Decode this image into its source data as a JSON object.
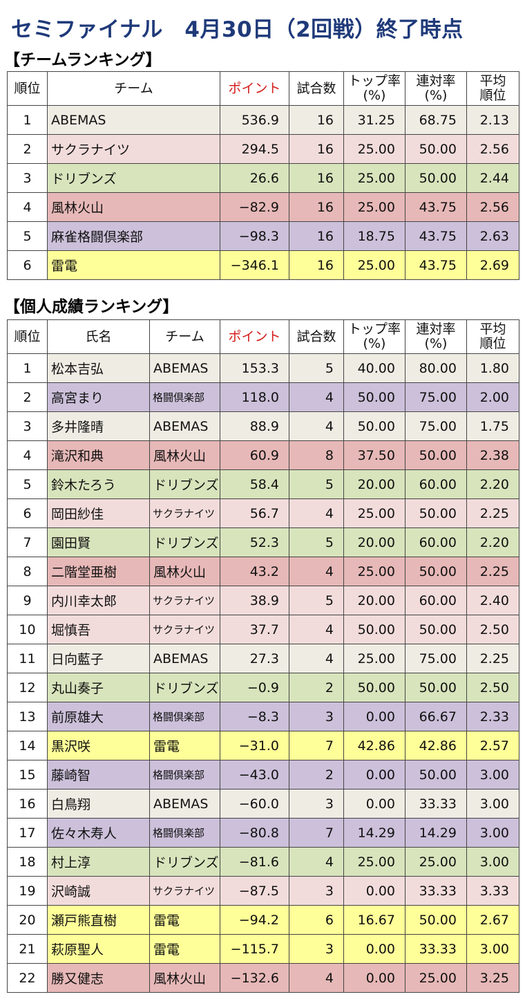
{
  "title": "セミファイナル　4月30日（2回戦）終了時点",
  "team_section": {
    "heading": "【チームランキング】",
    "headers": {
      "rank": "順位",
      "team": "チーム",
      "points": "ポイント",
      "games": "試合数",
      "top_rate": "トップ率\n(%)",
      "rentai": "連対率\n(%)",
      "avg": "平均\n順位"
    },
    "rows": [
      {
        "rank": "1",
        "team": "ABEMAS",
        "points": "536.9",
        "games": "16",
        "top_rate": "31.25",
        "rentai": "68.75",
        "avg": "2.13",
        "color": "#efece4"
      },
      {
        "rank": "2",
        "team": "サクラナイツ",
        "points": "294.5",
        "games": "16",
        "top_rate": "25.00",
        "rentai": "50.00",
        "avg": "2.56",
        "color": "#f2dcdb"
      },
      {
        "rank": "3",
        "team": "ドリブンズ",
        "points": "26.6",
        "games": "16",
        "top_rate": "25.00",
        "rentai": "50.00",
        "avg": "2.44",
        "color": "#d8e4bc"
      },
      {
        "rank": "4",
        "team": "風林火山",
        "points": "−82.9",
        "games": "16",
        "top_rate": "25.00",
        "rentai": "43.75",
        "avg": "2.56",
        "color": "#e6b8b7"
      },
      {
        "rank": "5",
        "team": "麻雀格闘倶楽部",
        "points": "−98.3",
        "games": "16",
        "top_rate": "18.75",
        "rentai": "43.75",
        "avg": "2.63",
        "color": "#ccc0da"
      },
      {
        "rank": "6",
        "team": "雷電",
        "points": "−346.1",
        "games": "16",
        "top_rate": "25.00",
        "rentai": "43.75",
        "avg": "2.69",
        "color": "#ffff99"
      }
    ]
  },
  "individual_section": {
    "heading": "【個人成績ランキング】",
    "headers": {
      "rank": "順位",
      "name": "氏名",
      "team": "チーム",
      "points": "ポイント",
      "games": "試合数",
      "top_rate": "トップ率\n(%)",
      "rentai": "連対率\n(%)",
      "avg": "平均\n順位"
    },
    "rows": [
      {
        "rank": "1",
        "name": "松本吉弘",
        "team": "ABEMAS",
        "points": "153.3",
        "games": "5",
        "top_rate": "40.00",
        "rentai": "80.00",
        "avg": "1.80",
        "color": "#efece4"
      },
      {
        "rank": "2",
        "name": "高宮まり",
        "team": "格闘倶楽部",
        "points": "118.0",
        "games": "4",
        "top_rate": "50.00",
        "rentai": "75.00",
        "avg": "2.00",
        "color": "#ccc0da"
      },
      {
        "rank": "3",
        "name": "多井隆晴",
        "team": "ABEMAS",
        "points": "88.9",
        "games": "4",
        "top_rate": "50.00",
        "rentai": "75.00",
        "avg": "1.75",
        "color": "#efece4"
      },
      {
        "rank": "4",
        "name": "滝沢和典",
        "team": "風林火山",
        "points": "60.9",
        "games": "8",
        "top_rate": "37.50",
        "rentai": "50.00",
        "avg": "2.38",
        "color": "#e6b8b7"
      },
      {
        "rank": "5",
        "name": "鈴木たろう",
        "team": "ドリブンズ",
        "points": "58.4",
        "games": "5",
        "top_rate": "20.00",
        "rentai": "60.00",
        "avg": "2.20",
        "color": "#d8e4bc"
      },
      {
        "rank": "6",
        "name": "岡田紗佳",
        "team": "サクラナイツ",
        "points": "56.7",
        "games": "4",
        "top_rate": "25.00",
        "rentai": "50.00",
        "avg": "2.25",
        "color": "#f2dcdb"
      },
      {
        "rank": "7",
        "name": "園田賢",
        "team": "ドリブンズ",
        "points": "52.3",
        "games": "5",
        "top_rate": "20.00",
        "rentai": "60.00",
        "avg": "2.20",
        "color": "#d8e4bc"
      },
      {
        "rank": "8",
        "name": "二階堂亜樹",
        "team": "風林火山",
        "points": "43.2",
        "games": "4",
        "top_rate": "25.00",
        "rentai": "50.00",
        "avg": "2.25",
        "color": "#e6b8b7"
      },
      {
        "rank": "9",
        "name": "内川幸太郎",
        "team": "サクラナイツ",
        "points": "38.9",
        "games": "5",
        "top_rate": "20.00",
        "rentai": "60.00",
        "avg": "2.40",
        "color": "#f2dcdb"
      },
      {
        "rank": "10",
        "name": "堀慎吾",
        "team": "サクラナイツ",
        "points": "37.7",
        "games": "4",
        "top_rate": "50.00",
        "rentai": "50.00",
        "avg": "2.50",
        "color": "#f2dcdb"
      },
      {
        "rank": "11",
        "name": "日向藍子",
        "team": "ABEMAS",
        "points": "27.3",
        "games": "4",
        "top_rate": "25.00",
        "rentai": "75.00",
        "avg": "2.25",
        "color": "#efece4"
      },
      {
        "rank": "12",
        "name": "丸山奏子",
        "team": "ドリブンズ",
        "points": "−0.9",
        "games": "2",
        "top_rate": "50.00",
        "rentai": "50.00",
        "avg": "2.50",
        "color": "#d8e4bc"
      },
      {
        "rank": "13",
        "name": "前原雄大",
        "team": "格闘倶楽部",
        "points": "−8.3",
        "games": "3",
        "top_rate": "0.00",
        "rentai": "66.67",
        "avg": "2.33",
        "color": "#ccc0da"
      },
      {
        "rank": "14",
        "name": "黒沢咲",
        "team": "雷電",
        "points": "−31.0",
        "games": "7",
        "top_rate": "42.86",
        "rentai": "42.86",
        "avg": "2.57",
        "color": "#ffff99"
      },
      {
        "rank": "15",
        "name": "藤崎智",
        "team": "格闘倶楽部",
        "points": "−43.0",
        "games": "2",
        "top_rate": "0.00",
        "rentai": "50.00",
        "avg": "3.00",
        "color": "#ccc0da"
      },
      {
        "rank": "16",
        "name": "白鳥翔",
        "team": "ABEMAS",
        "points": "−60.0",
        "games": "3",
        "top_rate": "0.00",
        "rentai": "33.33",
        "avg": "3.00",
        "color": "#efece4"
      },
      {
        "rank": "17",
        "name": "佐々木寿人",
        "team": "格闘倶楽部",
        "points": "−80.8",
        "games": "7",
        "top_rate": "14.29",
        "rentai": "14.29",
        "avg": "3.00",
        "color": "#ccc0da"
      },
      {
        "rank": "18",
        "name": "村上淳",
        "team": "ドリブンズ",
        "points": "−81.6",
        "games": "4",
        "top_rate": "25.00",
        "rentai": "25.00",
        "avg": "3.00",
        "color": "#d8e4bc"
      },
      {
        "rank": "19",
        "name": "沢崎誠",
        "team": "サクラナイツ",
        "points": "−87.5",
        "games": "3",
        "top_rate": "0.00",
        "rentai": "33.33",
        "avg": "3.33",
        "color": "#f2dcdb"
      },
      {
        "rank": "20",
        "name": "瀬戸熊直樹",
        "team": "雷電",
        "points": "−94.2",
        "games": "6",
        "top_rate": "16.67",
        "rentai": "50.00",
        "avg": "2.67",
        "color": "#ffff99"
      },
      {
        "rank": "21",
        "name": "萩原聖人",
        "team": "雷電",
        "points": "−115.7",
        "games": "3",
        "top_rate": "0.00",
        "rentai": "33.33",
        "avg": "3.00",
        "color": "#ffff99"
      },
      {
        "rank": "22",
        "name": "勝又健志",
        "team": "風林火山",
        "points": "−132.6",
        "games": "4",
        "top_rate": "0.00",
        "rentai": "25.00",
        "avg": "3.25",
        "color": "#e6b8b7"
      }
    ]
  }
}
